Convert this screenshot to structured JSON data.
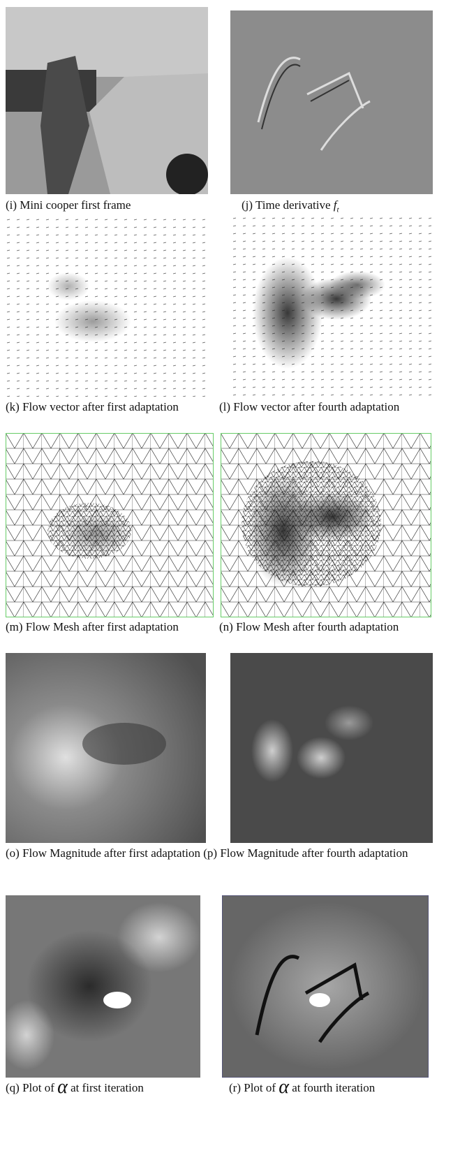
{
  "panels": [
    {
      "label": "(i)",
      "caption": "Mini cooper first frame"
    },
    {
      "label": "(j)",
      "caption": "Time derivative",
      "math": "f",
      "math_sub": "t"
    },
    {
      "label": "(k)",
      "caption": "Flow vector after first adaptation"
    },
    {
      "label": "(l)",
      "caption": "Flow vector after fourth adaptation"
    },
    {
      "label": "(m)",
      "caption": "Flow Mesh after first adaptation"
    },
    {
      "label": "(n)",
      "caption": "Flow Mesh after fourth adaptation"
    },
    {
      "label": "(o)",
      "caption": "Flow Magnitude after first adaptation"
    },
    {
      "label": "(p)",
      "caption": "Flow Magnitude after fourth adaptation"
    },
    {
      "label": "(q)",
      "caption": "Plot of",
      "math": "α",
      "caption_end": "at first iteration"
    },
    {
      "label": "(r)",
      "caption": "Plot of",
      "math": "α",
      "caption_end": "at fourth iteration"
    }
  ]
}
